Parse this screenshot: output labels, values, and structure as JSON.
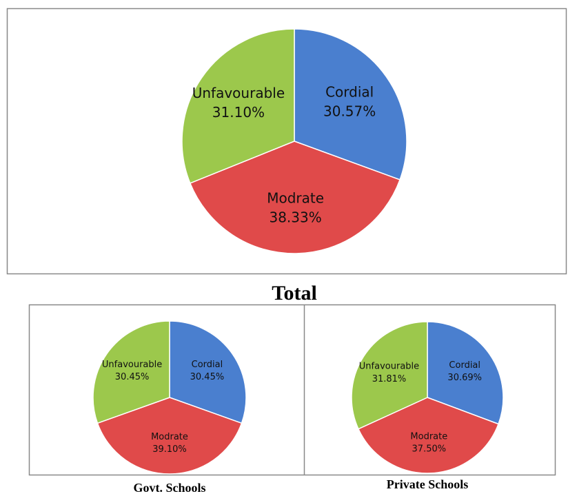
{
  "chart_data": [
    {
      "type": "pie",
      "title": "Total",
      "categories": [
        "Cordial",
        "Modrate",
        "Unfavourable"
      ],
      "values": [
        30.57,
        38.33,
        31.1
      ],
      "value_labels": [
        "30.57%",
        "38.33%",
        "31.10%"
      ],
      "colors": [
        "#4a7fcf",
        "#e04a4a",
        "#9cc84c"
      ]
    },
    {
      "type": "pie",
      "title": "Govt. Schools",
      "categories": [
        "Cordial",
        "Modrate",
        "Unfavourable"
      ],
      "values": [
        30.45,
        39.1,
        30.45
      ],
      "value_labels": [
        "30.45%",
        "39.10%",
        "30.45%"
      ],
      "colors": [
        "#4a7fcf",
        "#e04a4a",
        "#9cc84c"
      ]
    },
    {
      "type": "pie",
      "title": "Private Schools",
      "categories": [
        "Cordial",
        "Modrate",
        "Unfavourable"
      ],
      "values": [
        30.69,
        37.5,
        31.81
      ],
      "value_labels": [
        "30.69%",
        "37.50%",
        "31.81%"
      ],
      "colors": [
        "#4a7fcf",
        "#e04a4a",
        "#9cc84c"
      ]
    }
  ]
}
